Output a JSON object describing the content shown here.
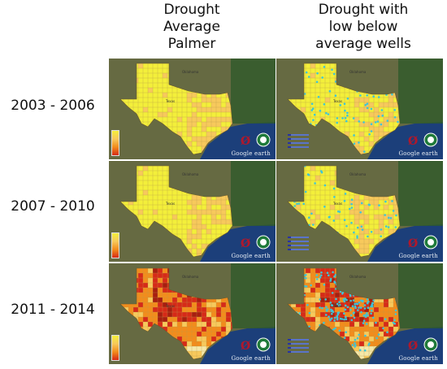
{
  "columns": [
    {
      "title": "Drought\nAverage\nPalmer"
    },
    {
      "title": "Drought with\nlow below\naverage wells"
    }
  ],
  "rows": [
    {
      "label": "2003 - 2006",
      "severity": "moderate"
    },
    {
      "label": "2007 - 2010",
      "severity": "moderate"
    },
    {
      "label": "2011 - 2014",
      "severity": "extreme"
    }
  ],
  "watermark": "Google earth",
  "map_labels": {
    "north_city": "Oklahoma",
    "center_state": "Texas"
  },
  "colors": {
    "drought_mild": "#f3ef3a",
    "drought_moderate": "#f7c95c",
    "drought_severe": "#f28c1c",
    "drought_extreme": "#d62a18",
    "wells": "#3ec5d8",
    "ocean": "#1c3f7a",
    "land": "#5b6b3e"
  }
}
